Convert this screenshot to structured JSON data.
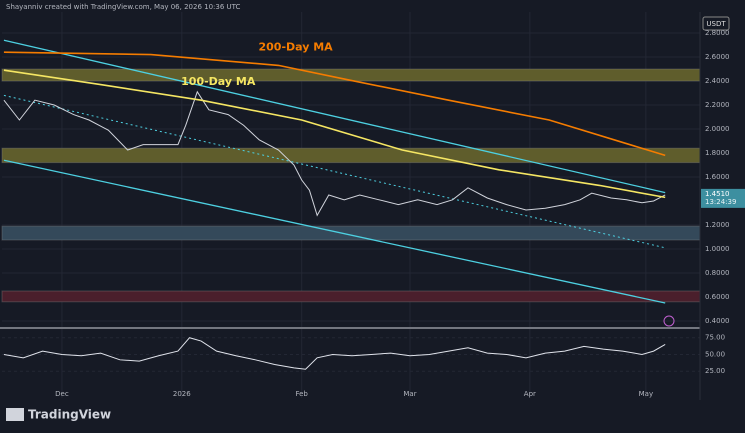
{
  "header": "Shayanniv created with TradingView.com, May 06, 2026 10:36 UTC",
  "currency": "USDT",
  "brand": "TradingView",
  "chart_data": [
    {
      "type": "line",
      "xlim": [
        -15.5,
        165
      ],
      "xticks": [
        {
          "value": 0,
          "label": "Dec"
        },
        {
          "value": 31,
          "label": "2026"
        },
        {
          "value": 62,
          "label": "Feb"
        },
        {
          "value": 90,
          "label": "Mar"
        },
        {
          "value": 121,
          "label": "Apr"
        },
        {
          "value": 151,
          "label": "May"
        }
      ],
      "ylim": [
        0.35,
        2.975
      ],
      "yticks": [
        {
          "value": 0.4,
          "label": "0.4000"
        },
        {
          "value": 0.6,
          "label": "0.6000"
        },
        {
          "value": 0.8,
          "label": "0.8000"
        },
        {
          "value": 1.0,
          "label": "1.0000"
        },
        {
          "value": 1.2,
          "label": "1.2000"
        },
        {
          "value": 1.6,
          "label": "1.6000"
        },
        {
          "value": 1.8,
          "label": "1.8000"
        },
        {
          "value": 2.0,
          "label": "2.0000"
        },
        {
          "value": 2.2,
          "label": "2.2000"
        },
        {
          "value": 2.4,
          "label": "2.4000"
        },
        {
          "value": 2.6,
          "label": "2.6000"
        },
        {
          "value": 2.8,
          "label": "2.8000"
        }
      ],
      "grid": true,
      "zones": [
        {
          "range": [
            2.4,
            2.5
          ],
          "color": "#5f5d2c"
        },
        {
          "range": [
            1.72,
            1.84
          ],
          "color": "#5f5d2c"
        },
        {
          "range": [
            1.075,
            1.19
          ],
          "color": "#34495a"
        },
        {
          "range": [
            0.56,
            0.65
          ],
          "color": "#4a1f2c"
        }
      ],
      "trendlines": [
        {
          "x": [
            -15,
            156
          ],
          "values": [
            2.74,
            1.47
          ],
          "color": "#4dd0e1",
          "dashed": false
        },
        {
          "x": [
            -15,
            156
          ],
          "values": [
            2.28,
            1.01
          ],
          "color": "#4dd0e1",
          "dashed": true
        },
        {
          "x": [
            -15,
            156
          ],
          "values": [
            1.74,
            0.55
          ],
          "color": "#4dd0e1",
          "dashed": false
        }
      ],
      "series": [
        {
          "color": "#d1d4dc",
          "x": [
            -15,
            -11,
            -7,
            -2,
            3,
            7,
            12,
            17,
            21,
            26,
            30,
            32,
            35,
            38,
            43,
            47,
            51,
            56,
            60,
            62,
            64,
            66,
            69,
            73,
            77,
            82,
            87,
            92,
            97,
            101,
            105,
            110,
            115,
            120,
            125,
            130,
            134,
            137,
            142,
            146,
            150,
            153,
            156
          ],
          "values": [
            2.24,
            2.075,
            2.24,
            2.2,
            2.12,
            2.075,
            1.99,
            1.825,
            1.87,
            1.87,
            1.87,
            2.03,
            2.31,
            2.16,
            2.12,
            2.03,
            1.91,
            1.825,
            1.7,
            1.575,
            1.49,
            1.28,
            1.45,
            1.41,
            1.45,
            1.41,
            1.37,
            1.41,
            1.37,
            1.41,
            1.51,
            1.425,
            1.37,
            1.325,
            1.34,
            1.37,
            1.41,
            1.465,
            1.425,
            1.41,
            1.385,
            1.4,
            1.451
          ]
        },
        {
          "name": "100-Day MA",
          "color": "#f5e663",
          "x": [
            -15,
            10,
            36,
            62,
            88,
            113,
            139,
            156
          ],
          "values": [
            2.49,
            2.37,
            2.24,
            2.075,
            1.825,
            1.66,
            1.53,
            1.43
          ]
        },
        {
          "name": "200-Day MA",
          "color": "#f57c00",
          "x": [
            -15,
            23,
            56,
            74,
            100,
            126,
            156
          ],
          "values": [
            2.64,
            2.62,
            2.53,
            2.41,
            2.24,
            2.075,
            1.78
          ]
        }
      ],
      "last_price": {
        "value": 1.451,
        "label": "1.4510"
      },
      "countdown": "13:24:39"
    },
    {
      "type": "line",
      "ylim": [
        -15,
        88
      ],
      "yticks": [
        {
          "value": 25,
          "label": "25.00"
        },
        {
          "value": 50,
          "label": "50.00"
        },
        {
          "value": 75,
          "label": "75.00"
        }
      ],
      "series": [
        {
          "color": "#e0e3eb",
          "x": [
            -15,
            -10,
            -5,
            0,
            5,
            10,
            15,
            20,
            25,
            30,
            33,
            36,
            40,
            45,
            50,
            55,
            60,
            63,
            66,
            70,
            75,
            80,
            85,
            90,
            95,
            100,
            105,
            110,
            115,
            120,
            125,
            130,
            135,
            140,
            145,
            150,
            153,
            156
          ],
          "values": [
            50,
            45,
            55,
            50,
            48,
            52,
            42,
            40,
            48,
            55,
            75,
            70,
            55,
            48,
            42,
            35,
            30,
            28,
            45,
            50,
            48,
            50,
            52,
            48,
            50,
            55,
            60,
            52,
            50,
            45,
            52,
            55,
            62,
            58,
            55,
            50,
            55,
            65
          ]
        }
      ]
    }
  ]
}
